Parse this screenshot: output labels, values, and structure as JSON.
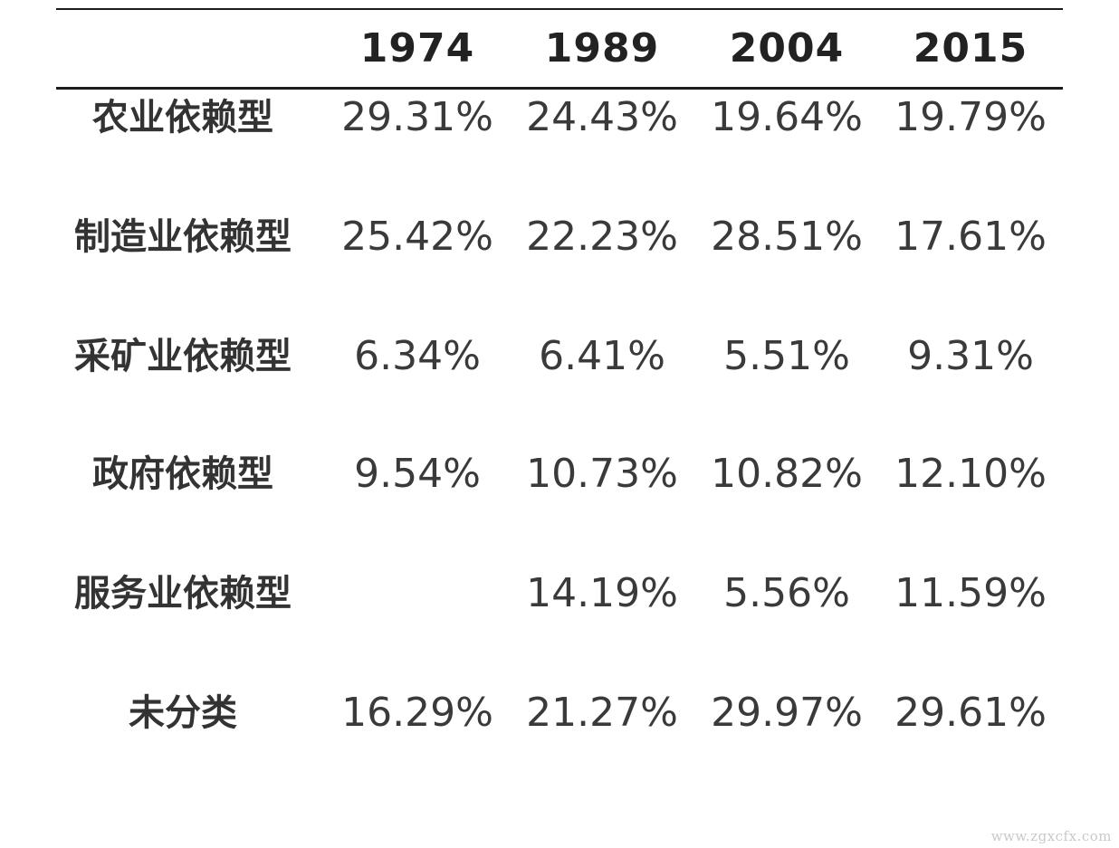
{
  "table": {
    "years": [
      "1974",
      "1989",
      "2004",
      "2015"
    ],
    "rows": [
      {
        "label": "农业依赖型",
        "values": [
          "29.31%",
          "24.43%",
          "19.64%",
          "19.79%"
        ]
      },
      {
        "label": "制造业依赖型",
        "values": [
          "25.42%",
          "22.23%",
          "28.51%",
          "17.61%"
        ]
      },
      {
        "label": "采矿业依赖型",
        "values": [
          "6.34%",
          "6.41%",
          "5.51%",
          "9.31%"
        ]
      },
      {
        "label": "政府依赖型",
        "values": [
          "9.54%",
          "10.73%",
          "10.82%",
          "12.10%"
        ]
      },
      {
        "label": "服务业依赖型",
        "values": [
          "",
          "14.19%",
          "5.56%",
          "11.59%"
        ]
      },
      {
        "label": "未分类",
        "values": [
          "16.29%",
          "21.27%",
          "29.97%",
          "29.61%"
        ]
      }
    ]
  },
  "watermark": "www.zgxcfx.com"
}
